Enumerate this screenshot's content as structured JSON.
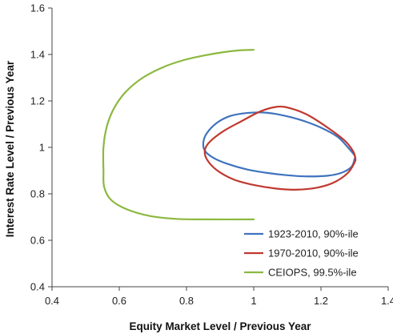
{
  "chart_data": {
    "type": "line",
    "title": "",
    "xlabel": "Equity Market Level / Previous Year",
    "ylabel": "Interest Rate Level / Previous Year",
    "xlim": [
      0.4,
      1.4
    ],
    "ylim": [
      0.4,
      1.6
    ],
    "xticks": [
      0.4,
      0.6,
      0.8,
      1,
      1.2,
      1.4
    ],
    "xtick_labels": [
      "0.4",
      "0.6",
      "0.8",
      "1",
      "1.2",
      "1.4"
    ],
    "yticks": [
      0.4,
      0.6,
      0.8,
      1,
      1.2,
      1.4,
      1.6
    ],
    "ytick_labels": [
      "0.4",
      "0.6",
      "0.8",
      "1",
      "1.2",
      "1.4",
      "1.6"
    ],
    "grid": false,
    "legend_position": "bottom-right",
    "series": [
      {
        "name": "1923-2010, 90%-ile",
        "color": "#3f73be",
        "closed": true,
        "points": [
          [
            1.3,
            0.95
          ],
          [
            1.29,
            0.915
          ],
          [
            1.26,
            0.89
          ],
          [
            1.22,
            0.878
          ],
          [
            1.16,
            0.875
          ],
          [
            1.1,
            0.88
          ],
          [
            1.04,
            0.89
          ],
          [
            0.98,
            0.905
          ],
          [
            0.92,
            0.93
          ],
          [
            0.88,
            0.955
          ],
          [
            0.855,
            0.985
          ],
          [
            0.85,
            1.02
          ],
          [
            0.86,
            1.06
          ],
          [
            0.89,
            1.105
          ],
          [
            0.93,
            1.135
          ],
          [
            0.98,
            1.148
          ],
          [
            1.03,
            1.15
          ],
          [
            1.08,
            1.14
          ],
          [
            1.14,
            1.118
          ],
          [
            1.2,
            1.085
          ],
          [
            1.25,
            1.045
          ],
          [
            1.28,
            1.0
          ],
          [
            1.3,
            0.965
          ]
        ]
      },
      {
        "name": "1970-2010, 90%-ile",
        "color": "#c0392f",
        "closed": true,
        "points": [
          [
            1.3,
            0.935
          ],
          [
            1.28,
            0.89
          ],
          [
            1.24,
            0.85
          ],
          [
            1.19,
            0.827
          ],
          [
            1.13,
            0.818
          ],
          [
            1.07,
            0.822
          ],
          [
            1.0,
            0.838
          ],
          [
            0.94,
            0.862
          ],
          [
            0.89,
            0.902
          ],
          [
            0.86,
            0.95
          ],
          [
            0.855,
            0.99
          ],
          [
            0.87,
            1.025
          ],
          [
            0.91,
            1.07
          ],
          [
            0.96,
            1.11
          ],
          [
            1.02,
            1.155
          ],
          [
            1.07,
            1.175
          ],
          [
            1.11,
            1.168
          ],
          [
            1.16,
            1.14
          ],
          [
            1.22,
            1.085
          ],
          [
            1.27,
            1.03
          ],
          [
            1.295,
            0.985
          ],
          [
            1.302,
            0.955
          ]
        ]
      },
      {
        "name": "CEIOPS, 99.5%-ile",
        "color": "#8cb840",
        "closed": false,
        "points": [
          [
            1.0,
            1.42
          ],
          [
            0.96,
            1.418
          ],
          [
            0.91,
            1.41
          ],
          [
            0.85,
            1.395
          ],
          [
            0.79,
            1.375
          ],
          [
            0.73,
            1.345
          ],
          [
            0.67,
            1.3
          ],
          [
            0.62,
            1.24
          ],
          [
            0.585,
            1.17
          ],
          [
            0.563,
            1.09
          ],
          [
            0.553,
            1.0
          ],
          [
            0.553,
            0.9
          ],
          [
            0.555,
            0.83
          ],
          [
            0.575,
            0.775
          ],
          [
            0.62,
            0.735
          ],
          [
            0.69,
            0.705
          ],
          [
            0.77,
            0.692
          ],
          [
            0.85,
            0.69
          ],
          [
            1.0,
            0.69
          ]
        ]
      }
    ]
  }
}
